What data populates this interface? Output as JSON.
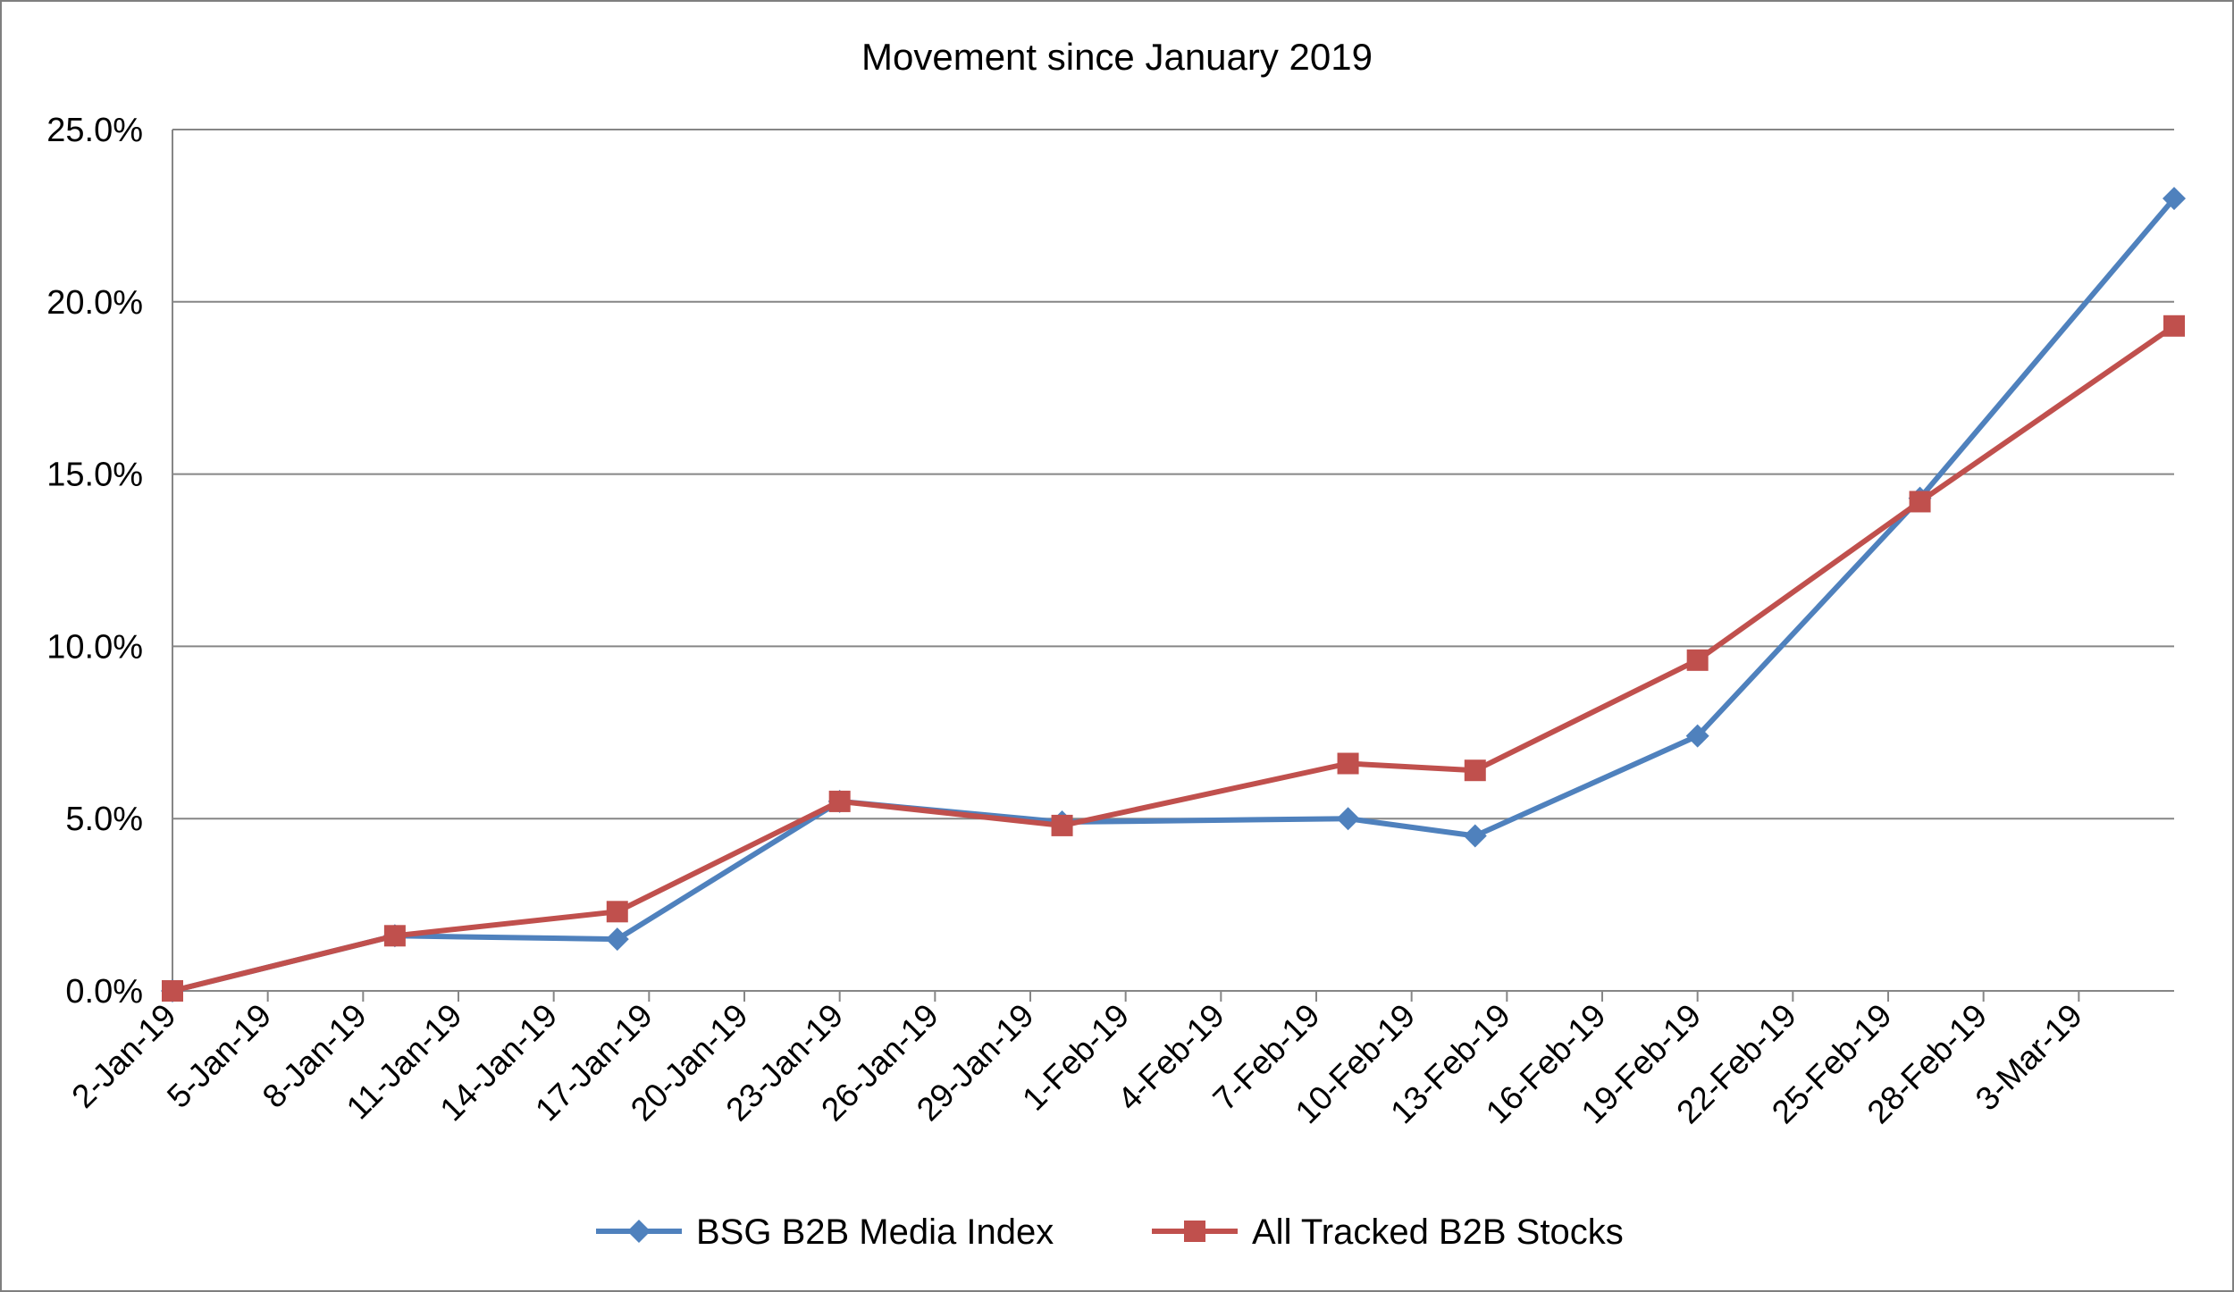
{
  "chart_data": {
    "type": "line",
    "title": "Movement since January 2019",
    "xlabel": "",
    "ylabel": "",
    "ylim": [
      0,
      0.25
    ],
    "y_ticks": [
      0,
      0.05,
      0.1,
      0.15,
      0.2,
      0.25
    ],
    "y_tick_labels": [
      "0.0%",
      "5.0%",
      "10.0%",
      "15.0%",
      "20.0%",
      "25.0%"
    ],
    "x_range": [
      "2019-01-02",
      "2019-03-06"
    ],
    "x_ticks": [
      "2019-01-02",
      "2019-01-05",
      "2019-01-08",
      "2019-01-11",
      "2019-01-14",
      "2019-01-17",
      "2019-01-20",
      "2019-01-23",
      "2019-01-26",
      "2019-01-29",
      "2019-02-01",
      "2019-02-04",
      "2019-02-07",
      "2019-02-10",
      "2019-02-13",
      "2019-02-16",
      "2019-02-19",
      "2019-02-22",
      "2019-02-25",
      "2019-02-28",
      "2019-03-03"
    ],
    "x_tick_labels": [
      "2-Jan-19",
      "5-Jan-19",
      "8-Jan-19",
      "11-Jan-19",
      "14-Jan-19",
      "17-Jan-19",
      "20-Jan-19",
      "23-Jan-19",
      "26-Jan-19",
      "29-Jan-19",
      "1-Feb-19",
      "4-Feb-19",
      "7-Feb-19",
      "10-Feb-19",
      "13-Feb-19",
      "16-Feb-19",
      "19-Feb-19",
      "22-Feb-19",
      "25-Feb-19",
      "28-Feb-19",
      "3-Mar-19"
    ],
    "grid": true,
    "legend_position": "bottom",
    "series": [
      {
        "name": "BSG B2B Media Index",
        "color": "#4f81bd",
        "marker": "diamond",
        "x": [
          "2019-01-02",
          "2019-01-09",
          "2019-01-16",
          "2019-01-23",
          "2019-01-30",
          "2019-02-08",
          "2019-02-12",
          "2019-02-19",
          "2019-02-26",
          "2019-03-06"
        ],
        "y": [
          0.0,
          0.016,
          0.015,
          0.055,
          0.049,
          0.05,
          0.045,
          0.074,
          0.143,
          0.23
        ]
      },
      {
        "name": "All Tracked B2B Stocks",
        "color": "#c0504d",
        "marker": "square",
        "x": [
          "2019-01-02",
          "2019-01-09",
          "2019-01-16",
          "2019-01-23",
          "2019-01-30",
          "2019-02-08",
          "2019-02-12",
          "2019-02-19",
          "2019-02-26",
          "2019-03-06"
        ],
        "y": [
          0.0,
          0.016,
          0.023,
          0.055,
          0.048,
          0.066,
          0.064,
          0.096,
          0.142,
          0.193
        ]
      }
    ]
  }
}
